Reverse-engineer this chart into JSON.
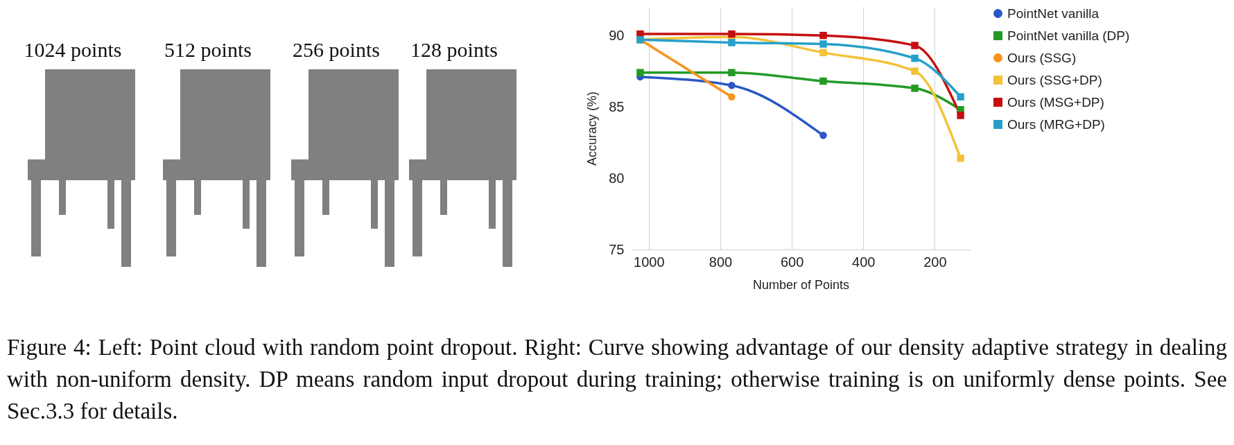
{
  "chart_data": {
    "type": "line",
    "xlabel": "Number of Points",
    "ylabel": "Accuracy (%)",
    "x": [
      1024,
      768,
      512,
      256,
      128
    ],
    "xlim": [
      1050,
      100
    ],
    "xticks": [
      1000,
      800,
      600,
      400,
      200
    ],
    "ylim": [
      75,
      92
    ],
    "yticks": [
      75,
      80,
      85,
      90
    ],
    "grid": "x",
    "legend": "top right",
    "line_style": "solid",
    "series": [
      {
        "name": "PointNet vanilla",
        "color": "#2a56c6",
        "marker": "circle",
        "values": [
          87.1,
          86.5,
          83.0,
          null,
          null
        ]
      },
      {
        "name": "PointNet vanilla (DP)",
        "color": "#249a25",
        "marker": "square",
        "values": [
          87.4,
          87.4,
          86.8,
          86.3,
          84.8
        ]
      },
      {
        "name": "Ours (SSG)",
        "color": "#f7941d",
        "marker": "circle",
        "values": [
          89.7,
          85.7,
          null,
          null,
          null
        ]
      },
      {
        "name": "Ours (SSG+DP)",
        "color": "#f2c23a",
        "marker": "square",
        "values": [
          89.7,
          89.9,
          88.8,
          87.5,
          81.4
        ]
      },
      {
        "name": "Ours (MSG+DP)",
        "color": "#c5100f",
        "marker": "square",
        "values": [
          90.1,
          90.1,
          90.0,
          89.3,
          84.4
        ]
      },
      {
        "name": "Ours (MRG+DP)",
        "color": "#27a0c9",
        "marker": "square",
        "values": [
          89.7,
          89.5,
          89.4,
          88.4,
          85.7
        ]
      }
    ],
    "annotations": [
      "1024 points",
      "512 points",
      "256 points",
      "128 points",
      "Figure 4: Left: Point cloud with random point dropout. Right: Curve showing advantage of our density adaptive strategy in dealing with non-uniform density. DP means random input dropout during training; otherwise training is on uniformly dense points. See Sec.3.3 for details."
    ]
  }
}
